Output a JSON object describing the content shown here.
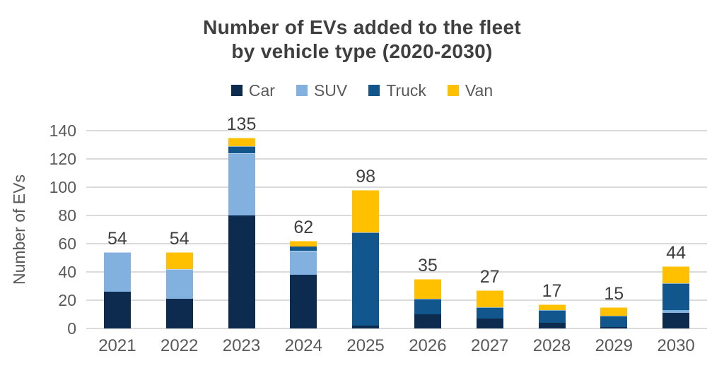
{
  "title": {
    "line1": "Number of EVs added to the fleet",
    "line2": "by vehicle type (2020-2030)"
  },
  "colors": {
    "background": "#FFFFFF",
    "title": "#3F3F3F",
    "axis_text": "#595959",
    "data_label": "#404040",
    "gridline": "#DBDBDB"
  },
  "chart_data": {
    "type": "bar",
    "stacked": true,
    "title": "Number of EVs added to the fleet by vehicle type (2020-2030)",
    "categories": [
      "2021",
      "2022",
      "2023",
      "2024",
      "2025",
      "2026",
      "2027",
      "2028",
      "2029",
      "2030"
    ],
    "series": [
      {
        "name": "Car",
        "color": "#0D2B4E",
        "values": [
          26,
          21,
          80,
          38,
          2,
          10,
          7,
          4,
          1,
          11
        ]
      },
      {
        "name": "SUV",
        "color": "#82B1E0",
        "values": [
          28,
          21,
          44,
          17,
          0,
          0,
          0,
          0,
          0,
          2
        ]
      },
      {
        "name": "Truck",
        "color": "#12568E",
        "values": [
          0,
          0,
          5,
          3,
          66,
          11,
          8,
          9,
          8,
          19
        ]
      },
      {
        "name": "Van",
        "color": "#FFC000",
        "values": [
          0,
          12,
          6,
          4,
          30,
          14,
          12,
          4,
          6,
          12
        ]
      }
    ],
    "totals": [
      54,
      54,
      135,
      62,
      98,
      35,
      27,
      17,
      15,
      44
    ],
    "xlabel": "",
    "ylabel": "Number of EVs",
    "ylim": [
      0,
      140
    ],
    "y_ticks": [
      0,
      20,
      40,
      60,
      80,
      100,
      120,
      140
    ],
    "grid": true,
    "legend_position": "top"
  }
}
